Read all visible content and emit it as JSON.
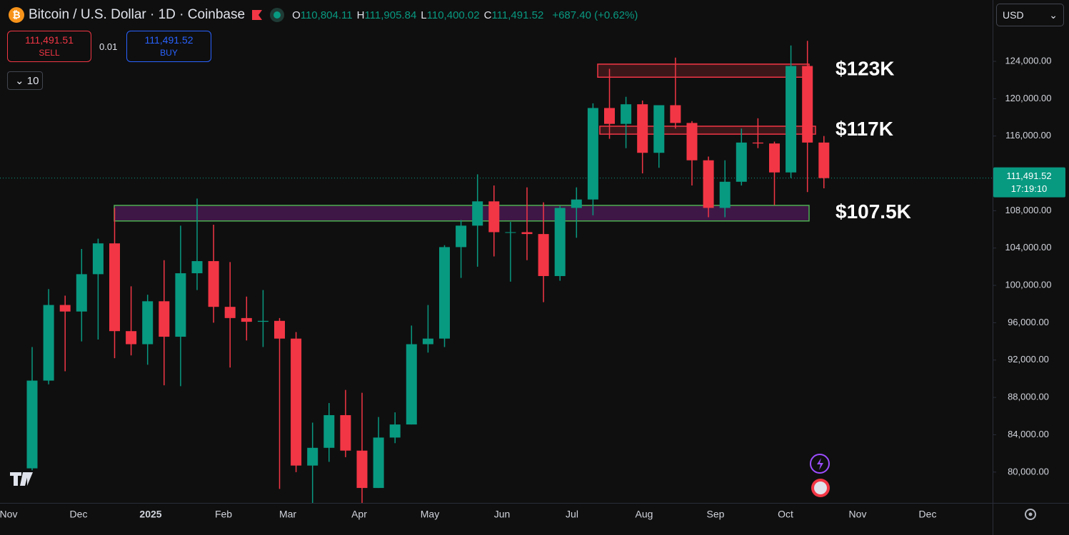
{
  "header": {
    "title": "Bitcoin / U.S. Dollar · 1D · Coinbase",
    "ohlc": [
      {
        "key": "O",
        "value": "110,804.11"
      },
      {
        "key": "H",
        "value": "111,905.84"
      },
      {
        "key": "L",
        "value": "110,400.02"
      },
      {
        "key": "C",
        "value": "111,491.52"
      }
    ],
    "change": "+687.40 (+0.62%)",
    "currency": "USD"
  },
  "trade": {
    "sell_price": "111,491.51",
    "sell": "SELL",
    "spread": "0.01",
    "buy_price": "111,491.52",
    "buy": "BUY",
    "interval_count": "10"
  },
  "chart_data": {
    "type": "candlestick",
    "up_color": "#089981",
    "down_color": "#f23645",
    "open": [
      80400,
      89800,
      97900,
      97200,
      101200,
      104500,
      95100,
      93700,
      98300,
      94500,
      101300,
      102600,
      97700,
      96500,
      96100,
      96200,
      94300,
      80700,
      82600,
      86100,
      82300,
      78300,
      83700,
      85100,
      93700,
      94300,
      104100,
      106400,
      109000,
      105700,
      105700,
      105500,
      101000,
      108300,
      109200,
      119000,
      117300,
      119400,
      114200,
      119300,
      117400,
      113400,
      108300,
      111100,
      115300,
      115200,
      112100,
      123500,
      115300
    ],
    "high": [
      93400,
      99600,
      98900,
      103900,
      105000,
      108300,
      99900,
      99000,
      102700,
      106400,
      109300,
      106500,
      102500,
      98800,
      99500,
      96500,
      95000,
      85300,
      87400,
      88800,
      88500,
      85900,
      86400,
      95700,
      97900,
      104300,
      107000,
      111900,
      110700,
      106800,
      110500,
      108900,
      108500,
      110500,
      119500,
      123200,
      120200,
      119800,
      119300,
      124400,
      117600,
      113800,
      113400,
      116800,
      117900,
      115400,
      125700,
      126200,
      116000
    ],
    "low": [
      80200,
      89400,
      90800,
      94000,
      94200,
      92200,
      92500,
      91500,
      89300,
      89200,
      99500,
      96000,
      91200,
      94100,
      93400,
      78200,
      80000,
      76600,
      81100,
      81600,
      74500,
      78300,
      83100,
      85100,
      92800,
      93400,
      100800,
      102000,
      103100,
      100400,
      102700,
      98200,
      100500,
      105100,
      107500,
      115700,
      114700,
      112000,
      112600,
      116800,
      110700,
      107300,
      107300,
      110700,
      114700,
      108600,
      111500,
      110000,
      110400
    ],
    "close": [
      89800,
      97900,
      97200,
      101200,
      104500,
      95100,
      93700,
      98300,
      94500,
      101300,
      102600,
      97700,
      96500,
      96100,
      96200,
      94300,
      80700,
      82600,
      86100,
      82300,
      78300,
      83700,
      85100,
      93700,
      94300,
      104100,
      106400,
      109000,
      105700,
      105700,
      105500,
      101000,
      108300,
      109200,
      119000,
      117300,
      119400,
      114200,
      119300,
      117400,
      113400,
      108300,
      111100,
      115300,
      115200,
      112100,
      123500,
      115300,
      111491.52
    ],
    "xticks": [
      "Nov",
      "Dec",
      "2025",
      "Feb",
      "Mar",
      "Apr",
      "May",
      "Jun",
      "Jul",
      "Aug",
      "Sep",
      "Oct",
      "Nov",
      "Dec"
    ],
    "ylim": [
      76700,
      130570
    ],
    "yticks": [
      {
        "value": 80000,
        "label": "80,000.00"
      },
      {
        "value": 84000,
        "label": "84,000.00"
      },
      {
        "value": 88000,
        "label": "88,000.00"
      },
      {
        "value": 92000,
        "label": "92,000.00"
      },
      {
        "value": 96000,
        "label": "96,000.00"
      },
      {
        "value": 100000,
        "label": "100,000.00"
      },
      {
        "value": 104000,
        "label": "104,000.00"
      },
      {
        "value": 108000,
        "label": "108,000.00"
      },
      {
        "value": 112000,
        "label": "112,000.00"
      },
      {
        "value": 116000,
        "label": "116,000.00"
      },
      {
        "value": 120000,
        "label": "120,000.00"
      },
      {
        "value": 124000,
        "label": "124,000.00"
      }
    ],
    "last_price": 111491.52,
    "last_price_label": "111,491.52",
    "countdown": "17:19:10",
    "zones": [
      {
        "label": "$123K",
        "low": 122300,
        "high": 123700,
        "color": "#f23645"
      },
      {
        "label": "$117K",
        "low": 116200,
        "high": 117050,
        "color": "#f23645"
      },
      {
        "label": "$107.5K",
        "low": 106900,
        "high": 108570,
        "color": "#4caf50"
      }
    ]
  }
}
